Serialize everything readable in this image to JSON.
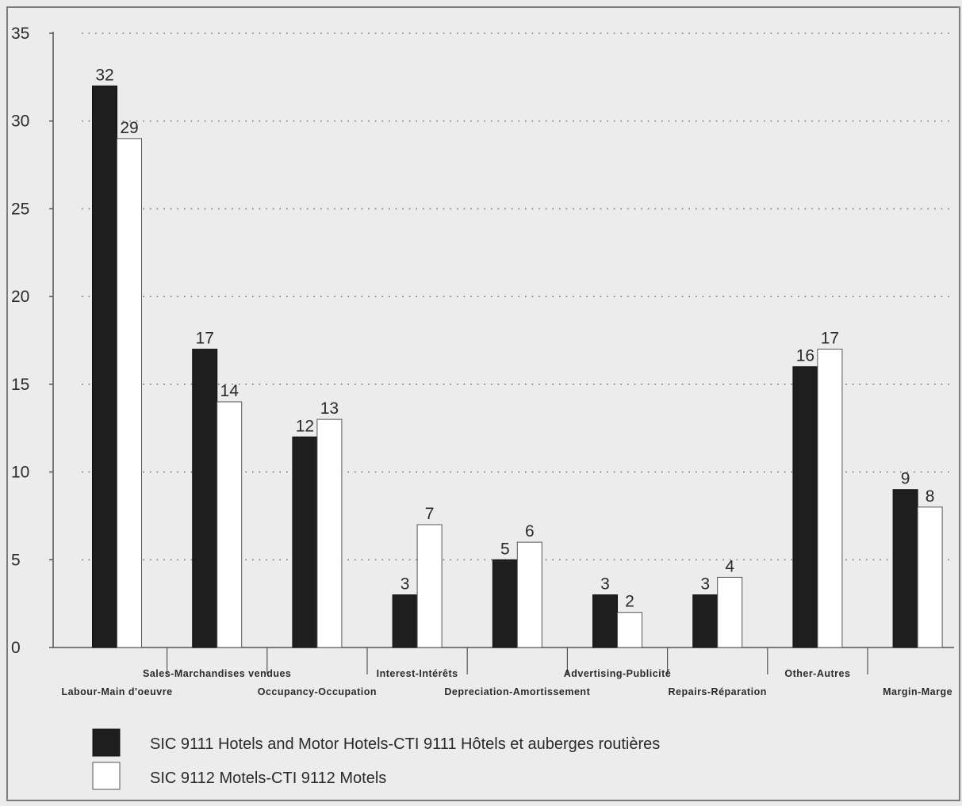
{
  "chart_data": {
    "type": "bar",
    "title": "",
    "xlabel": "",
    "ylabel": "",
    "ylim": [
      0,
      35
    ],
    "yticks": [
      0,
      5,
      10,
      15,
      20,
      25,
      30,
      35
    ],
    "grid": "horizontal-dotted",
    "legend_position": "bottom",
    "categories": [
      "Labour-Main d'oeuvre",
      "Sales-Marchandises vendues",
      "Occupancy-Occupation",
      "Interest-Intérêts",
      "Depreciation-Amortissement",
      "Advertising-Publicité",
      "Repairs-Réparation",
      "Other-Autres",
      "Margin-Marge"
    ],
    "series": [
      {
        "name": "SIC 9111 Hotels and Motor Hotels-CTI 9111 Hôtels et auberges routières",
        "values": [
          32,
          17,
          12,
          3,
          5,
          3,
          3,
          16,
          9
        ],
        "color": "#1e1e1e"
      },
      {
        "name": "SIC 9112 Motels-CTI 9112 Motels",
        "values": [
          29,
          14,
          13,
          7,
          6,
          2,
          4,
          17,
          8
        ],
        "color": "#ffffff"
      }
    ]
  }
}
